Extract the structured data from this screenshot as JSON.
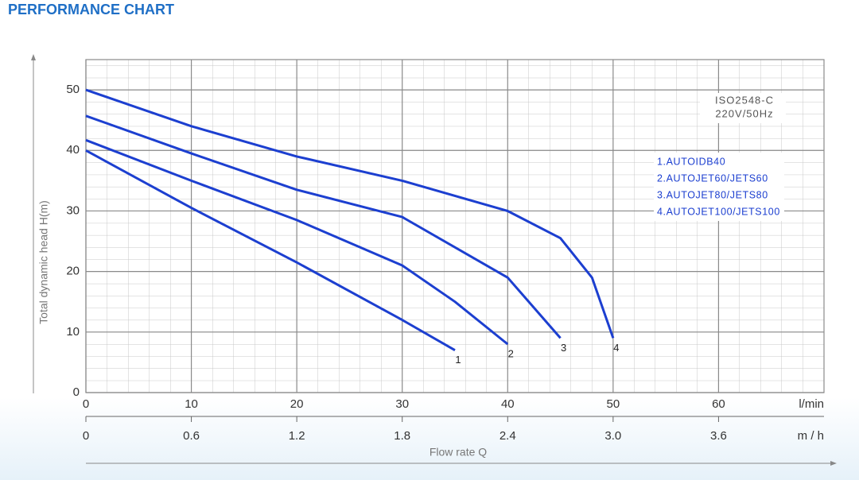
{
  "chart_data": {
    "type": "line",
    "title": "PERFORMANCE CHART",
    "ylabel": "Total dynamic head H(m)",
    "xlabel": "Flow rate Q",
    "xunit": "l/min",
    "x2unit": "m / h",
    "annotations": [
      "ISO2548-C",
      "220V/50Hz"
    ],
    "xlim": [
      0,
      70
    ],
    "xticks": [
      0,
      10,
      20,
      30,
      40,
      50,
      60
    ],
    "x2lim": [
      0,
      4.2
    ],
    "x2ticks": [
      0,
      0.6,
      1.2,
      1.8,
      2.4,
      {
        "value": 3,
        "label": "3.0"
      },
      3.6
    ],
    "ylim": [
      0,
      55
    ],
    "yticks": [
      0,
      10,
      20,
      30,
      40,
      50
    ],
    "grid": true,
    "series": [
      {
        "name": "1.AUTOIDB40",
        "end_label": "1",
        "color": "#1c3fd0",
        "x": [
          0,
          10,
          20,
          30,
          35
        ],
        "values": [
          40,
          30.5,
          21.5,
          12,
          7
        ]
      },
      {
        "name": "2.AUTOJET60/JETS60",
        "end_label": "2",
        "color": "#1c3fd0",
        "x": [
          0,
          10,
          20,
          30,
          35,
          40
        ],
        "values": [
          41.7,
          35,
          28.5,
          21,
          15,
          8
        ]
      },
      {
        "name": "3.AUTOJET80/JETS80",
        "end_label": "3",
        "color": "#1c3fd0",
        "x": [
          0,
          10,
          20,
          30,
          40,
          45
        ],
        "values": [
          45.7,
          39.5,
          33.5,
          29,
          19,
          9
        ]
      },
      {
        "name": "4.AUTOJET100/JETS100",
        "end_label": "4",
        "color": "#1c3fd0",
        "x": [
          0,
          10,
          20,
          30,
          40,
          45,
          48,
          50
        ],
        "values": [
          50,
          44,
          39,
          35,
          30,
          25.5,
          19,
          9
        ]
      }
    ]
  }
}
